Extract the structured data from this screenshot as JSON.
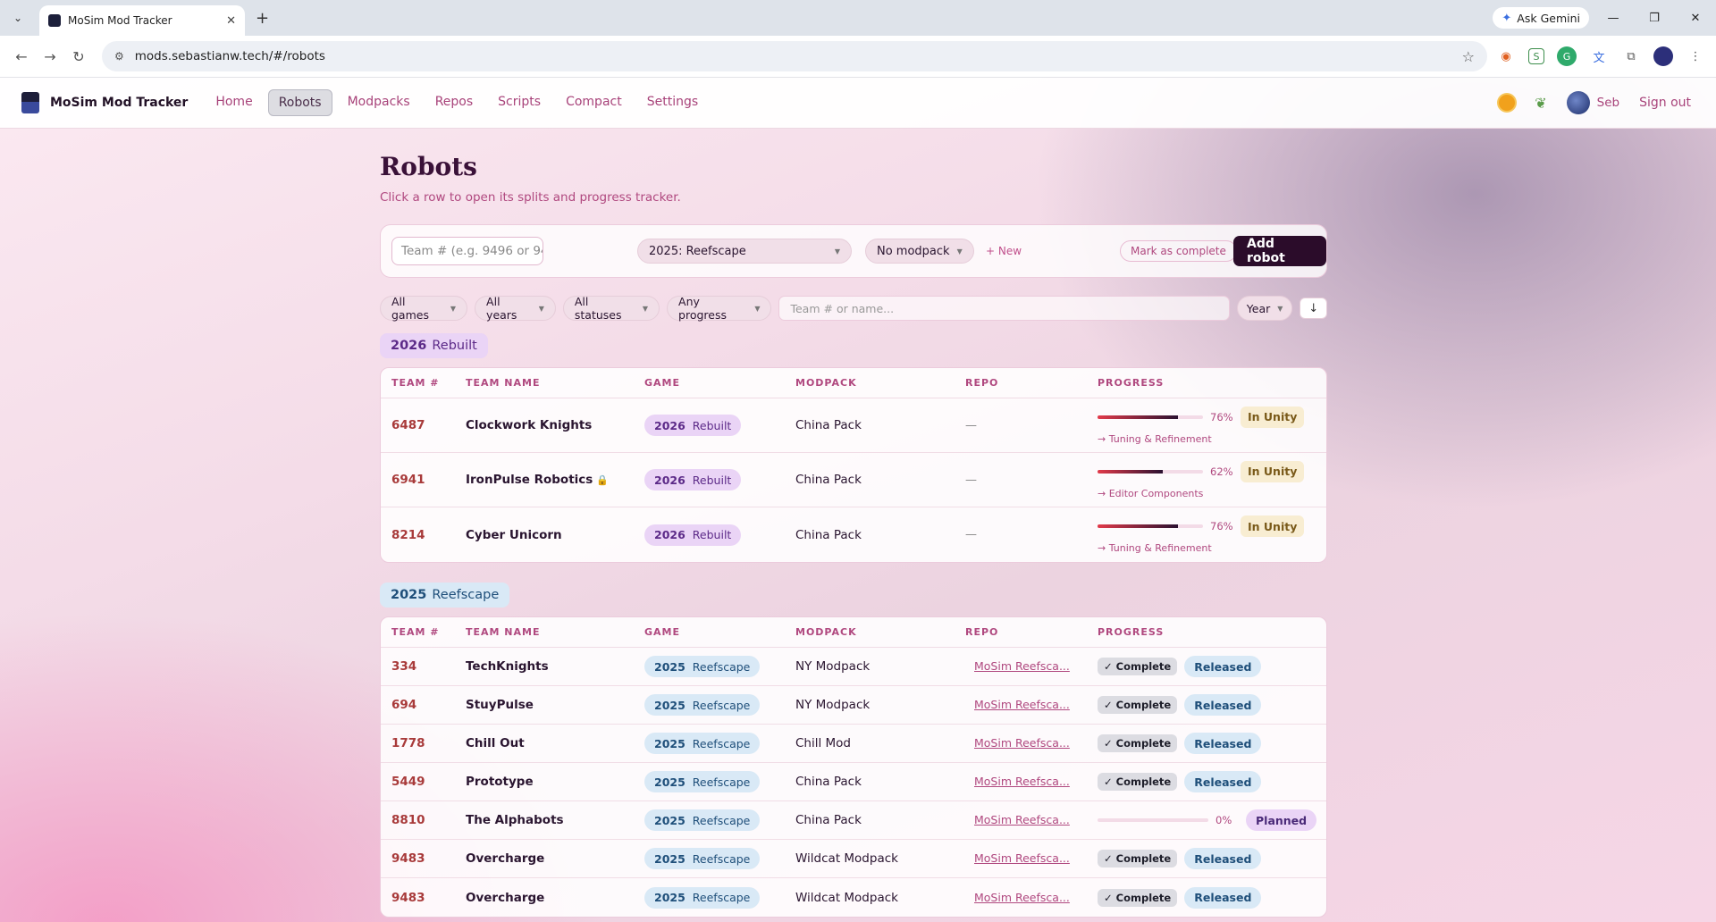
{
  "browser": {
    "tab_title": "MoSim Mod Tracker",
    "url": "mods.sebastianw.tech/#/robots",
    "gemini_label": "Ask Gemini"
  },
  "nav": {
    "brand": "MoSim Mod Tracker",
    "links": [
      "Home",
      "Robots",
      "Modpacks",
      "Repos",
      "Scripts",
      "Compact",
      "Settings"
    ],
    "active": "Robots",
    "user": "Seb",
    "signout": "Sign out"
  },
  "page": {
    "title": "Robots",
    "subtitle": "Click a row to open its splits and progress tracker."
  },
  "addbar": {
    "team_placeholder": "Team # (e.g. 9496 or 94",
    "game_value": "2025: Reefscape",
    "modpack_value": "No modpack",
    "new_link": "+ New",
    "mark_complete": "Mark as complete",
    "add_button": "Add robot"
  },
  "filters": {
    "games": "All games",
    "years": "All years",
    "statuses": "All statuses",
    "progress": "Any progress",
    "search_placeholder": "Team # or name...",
    "sort": "Year",
    "direction": "↓"
  },
  "table_headers": [
    "TEAM #",
    "TEAM NAME",
    "GAME",
    "MODPACK",
    "REPO",
    "PROGRESS"
  ],
  "groups": [
    {
      "year": "2026",
      "game": "Rebuilt",
      "rows": [
        {
          "team": "6487",
          "name": "Clockwork Knights",
          "locked": false,
          "year": "2026",
          "game": "Rebuilt",
          "modpack": "China Pack",
          "repo": "—",
          "progress": 0.76,
          "pct": "76%",
          "status": "In Unity",
          "phase": "→ Tuning & Refinement"
        },
        {
          "team": "6941",
          "name": "IronPulse Robotics",
          "locked": true,
          "year": "2026",
          "game": "Rebuilt",
          "modpack": "China Pack",
          "repo": "—",
          "progress": 0.62,
          "pct": "62%",
          "status": "In Unity",
          "phase": "→ Editor Components"
        },
        {
          "team": "8214",
          "name": "Cyber Unicorn",
          "locked": false,
          "year": "2026",
          "game": "Rebuilt",
          "modpack": "China Pack",
          "repo": "—",
          "progress": 0.76,
          "pct": "76%",
          "status": "In Unity",
          "phase": "→ Tuning & Refinement"
        }
      ]
    },
    {
      "year": "2025",
      "game": "Reefscape",
      "rows": [
        {
          "team": "334",
          "name": "TechKnights",
          "year": "2025",
          "game": "Reefscape",
          "modpack": "NY Modpack",
          "repo": "MoSim Reefsca...",
          "complete": "✓ Complete",
          "status": "Released"
        },
        {
          "team": "694",
          "name": "StuyPulse",
          "year": "2025",
          "game": "Reefscape",
          "modpack": "NY Modpack",
          "repo": "MoSim Reefsca...",
          "complete": "✓ Complete",
          "status": "Released"
        },
        {
          "team": "1778",
          "name": "Chill Out",
          "year": "2025",
          "game": "Reefscape",
          "modpack": "Chill Mod",
          "repo": "MoSim Reefsca...",
          "complete": "✓ Complete",
          "status": "Released"
        },
        {
          "team": "5449",
          "name": "Prototype",
          "year": "2025",
          "game": "Reefscape",
          "modpack": "China Pack",
          "repo": "MoSim Reefsca...",
          "complete": "✓ Complete",
          "status": "Released"
        },
        {
          "team": "8810",
          "name": "The Alphabots",
          "year": "2025",
          "game": "Reefscape",
          "modpack": "China Pack",
          "repo": "MoSim Reefsca...",
          "progress": 0,
          "pct": "0%",
          "status": "Planned"
        },
        {
          "team": "9483",
          "name": "Overcharge",
          "year": "2025",
          "game": "Reefscape",
          "modpack": "Wildcat Modpack",
          "repo": "MoSim Reefsca...",
          "complete": "✓ Complete",
          "status": "Released"
        },
        {
          "team": "9483",
          "name": "Overcharge",
          "year": "2025",
          "game": "Reefscape",
          "modpack": "Wildcat Modpack",
          "repo": "MoSim Reefsca...",
          "complete": "✓ Complete",
          "status": "Released"
        }
      ]
    }
  ]
}
